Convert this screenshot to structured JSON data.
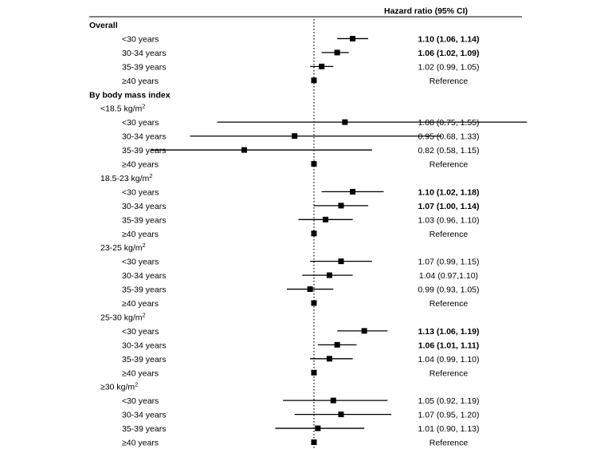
{
  "chart_data": {
    "type": "forest",
    "column_header": "Hazard ratio (95% CI)",
    "reference_value": 1.0,
    "rows": [
      {
        "kind": "section",
        "label": "Overall"
      },
      {
        "kind": "data",
        "label": "<30 years",
        "hr": 1.1,
        "lo": 1.06,
        "hi": 1.14,
        "text": "1.10 (1.06, 1.14)",
        "bold": true
      },
      {
        "kind": "data",
        "label": "30-34 years",
        "hr": 1.06,
        "lo": 1.02,
        "hi": 1.09,
        "text": "1.06 (1.02, 1.09)",
        "bold": true
      },
      {
        "kind": "data",
        "label": "35-39 years",
        "hr": 1.02,
        "lo": 0.99,
        "hi": 1.05,
        "text": "1.02 (0.99, 1.05)",
        "bold": false
      },
      {
        "kind": "data",
        "label": "≥40 years",
        "hr": 1.0,
        "lo": 1.0,
        "hi": 1.0,
        "text": "Reference",
        "bold": false
      },
      {
        "kind": "section",
        "label": "By body mass index"
      },
      {
        "kind": "sub",
        "label": "<18.5 kg/m",
        "sup": "2"
      },
      {
        "kind": "data",
        "label": "<30 years",
        "hr": 1.08,
        "lo": 0.75,
        "hi": 1.55,
        "text": "1.08 (0.75, 1.55)",
        "bold": false
      },
      {
        "kind": "data",
        "label": "30-34 years",
        "hr": 0.95,
        "lo": 0.68,
        "hi": 1.33,
        "text": "0.95 (0.68, 1.33)",
        "bold": false
      },
      {
        "kind": "data",
        "label": "35-39 years",
        "hr": 0.82,
        "lo": 0.58,
        "hi": 1.15,
        "text": "0.82 (0.58, 1.15)",
        "bold": false
      },
      {
        "kind": "data",
        "label": "≥40 years",
        "hr": 1.0,
        "lo": 1.0,
        "hi": 1.0,
        "text": "Reference",
        "bold": false
      },
      {
        "kind": "sub",
        "label": "18.5-23 kg/m",
        "sup": "2"
      },
      {
        "kind": "data",
        "label": "<30 years",
        "hr": 1.1,
        "lo": 1.02,
        "hi": 1.18,
        "text": "1.10 (1.02, 1.18)",
        "bold": true
      },
      {
        "kind": "data",
        "label": "30-34 years",
        "hr": 1.07,
        "lo": 1.0,
        "hi": 1.14,
        "text": "1.07 (1.00, 1.14)",
        "bold": true
      },
      {
        "kind": "data",
        "label": "35-39 years",
        "hr": 1.03,
        "lo": 0.96,
        "hi": 1.1,
        "text": "1.03 (0.96, 1.10)",
        "bold": false
      },
      {
        "kind": "data",
        "label": "≥40 years",
        "hr": 1.0,
        "lo": 1.0,
        "hi": 1.0,
        "text": "Reference",
        "bold": false
      },
      {
        "kind": "sub",
        "label": "23-25 kg/m",
        "sup": "2"
      },
      {
        "kind": "data",
        "label": "<30 years",
        "hr": 1.07,
        "lo": 0.99,
        "hi": 1.15,
        "text": "1.07 (0.99, 1.15)",
        "bold": false
      },
      {
        "kind": "data",
        "label": "30-34 years",
        "hr": 1.04,
        "lo": 0.97,
        "hi": 1.1,
        "text": "1.04 (0.97,1.10)",
        "bold": false
      },
      {
        "kind": "data",
        "label": "35-39 years",
        "hr": 0.99,
        "lo": 0.93,
        "hi": 1.05,
        "text": "0.99 (0.93, 1.05)",
        "bold": false
      },
      {
        "kind": "data",
        "label": "≥40 years",
        "hr": 1.0,
        "lo": 1.0,
        "hi": 1.0,
        "text": "Reference",
        "bold": false
      },
      {
        "kind": "sub",
        "label": "25-30 kg/m",
        "sup": "2"
      },
      {
        "kind": "data",
        "label": "<30 years",
        "hr": 1.13,
        "lo": 1.06,
        "hi": 1.19,
        "text": "1.13 (1.06, 1.19)",
        "bold": true
      },
      {
        "kind": "data",
        "label": "30-34 years",
        "hr": 1.06,
        "lo": 1.01,
        "hi": 1.11,
        "text": "1.06 (1.01, 1.11)",
        "bold": true
      },
      {
        "kind": "data",
        "label": "35-39 years",
        "hr": 1.04,
        "lo": 0.99,
        "hi": 1.1,
        "text": "1.04 (0.99, 1.10)",
        "bold": false
      },
      {
        "kind": "data",
        "label": "≥40 years",
        "hr": 1.0,
        "lo": 1.0,
        "hi": 1.0,
        "text": "Reference",
        "bold": false
      },
      {
        "kind": "sub",
        "label": "≥30 kg/m",
        "sup": "2"
      },
      {
        "kind": "data",
        "label": "<30 years",
        "hr": 1.05,
        "lo": 0.92,
        "hi": 1.19,
        "text": "1.05 (0.92, 1.19)",
        "bold": false
      },
      {
        "kind": "data",
        "label": "30-34 years",
        "hr": 1.07,
        "lo": 0.95,
        "hi": 1.2,
        "text": "1.07 (0.95, 1.20)",
        "bold": false
      },
      {
        "kind": "data",
        "label": "35-39 years",
        "hr": 1.01,
        "lo": 0.9,
        "hi": 1.13,
        "text": "1.01 (0.90, 1.13)",
        "bold": false
      },
      {
        "kind": "data",
        "label": "≥40 years",
        "hr": 1.0,
        "lo": 1.0,
        "hi": 1.0,
        "text": "Reference",
        "bold": false
      }
    ]
  }
}
